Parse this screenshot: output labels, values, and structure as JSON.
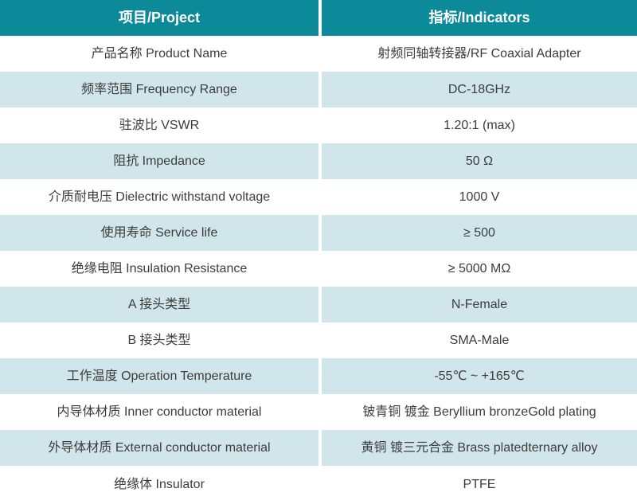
{
  "table": {
    "colors": {
      "header_bg": "#0d8a99",
      "header_text": "#ffffff",
      "row_bg": "#ffffff",
      "row_alt_bg": "#d1e6ea",
      "text": "#3c3c3c"
    },
    "header": {
      "project": "项目/Project",
      "indicators": "指标/Indicators"
    },
    "rows": [
      {
        "project": "产品名称 Product Name",
        "indicator": "射频同轴转接器/RF Coaxial Adapter"
      },
      {
        "project": "频率范围 Frequency Range",
        "indicator": "DC-18GHz"
      },
      {
        "project": "驻波比 VSWR",
        "indicator": "1.20:1 (max)"
      },
      {
        "project": "阻抗 Impedance",
        "indicator": "50 Ω"
      },
      {
        "project": "介质耐电压 Dielectric withstand voltage",
        "indicator": "1000 V"
      },
      {
        "project": "使用寿命 Service life",
        "indicator": "≥ 500"
      },
      {
        "project": "绝缘电阻 Insulation Resistance",
        "indicator": "≥ 5000 MΩ"
      },
      {
        "project": "A 接头类型",
        "indicator": "N-Female"
      },
      {
        "project": "B 接头类型",
        "indicator": "SMA-Male"
      },
      {
        "project": "工作温度 Operation Temperature",
        "indicator": "-55℃ ~ +165℃"
      },
      {
        "project": "内导体材质 Inner conductor material",
        "indicator": "铍青铜 镀金 Beryllium bronzeGold plating"
      },
      {
        "project": "外导体材质 External conductor material",
        "indicator": "黄铜 镀三元合金 Brass platedternary alloy"
      },
      {
        "project": "绝缘体 Insulator",
        "indicator": "PTFE"
      }
    ]
  }
}
